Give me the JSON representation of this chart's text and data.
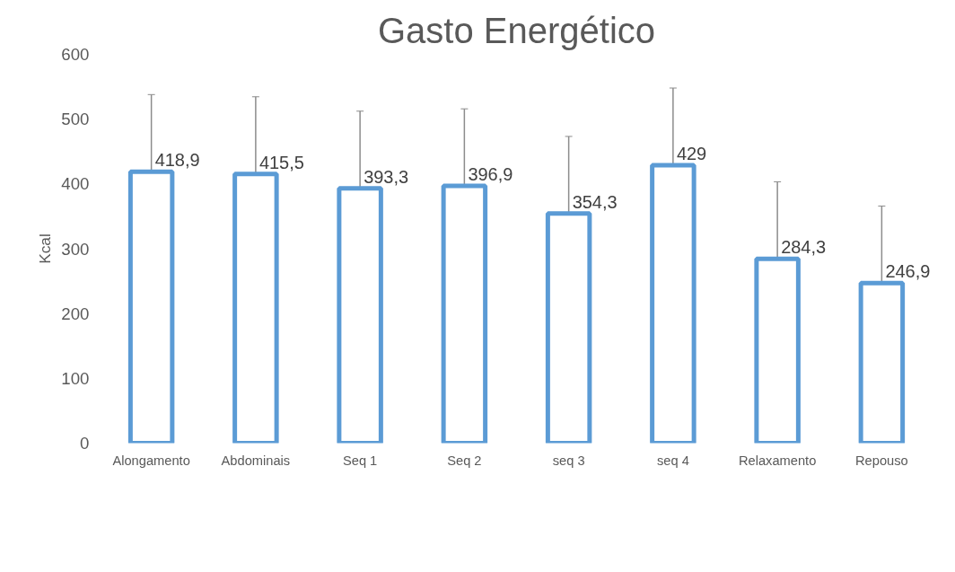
{
  "chart_data": {
    "type": "bar",
    "title": "Gasto Energético",
    "ylabel": "Kcal",
    "categories": [
      "Alongamento",
      "Abdominais",
      "Seq 1",
      "Seq 2",
      "seq 3",
      "seq 4",
      "Relaxamento",
      "Repouso"
    ],
    "values": [
      418.9,
      415.5,
      393.3,
      396.9,
      354.3,
      429,
      284.3,
      246.9
    ],
    "value_labels": [
      "418,9",
      "415,5",
      "393,3",
      "396,9",
      "354,3",
      "429",
      "284,3",
      "246,9"
    ],
    "errors": [
      119,
      119,
      119,
      119,
      119,
      119,
      119,
      119
    ],
    "color": "#5b9bd5",
    "ylim": [
      0,
      600
    ],
    "yticks": [
      0,
      100,
      200,
      300,
      400,
      500,
      600
    ],
    "grid": false
  }
}
